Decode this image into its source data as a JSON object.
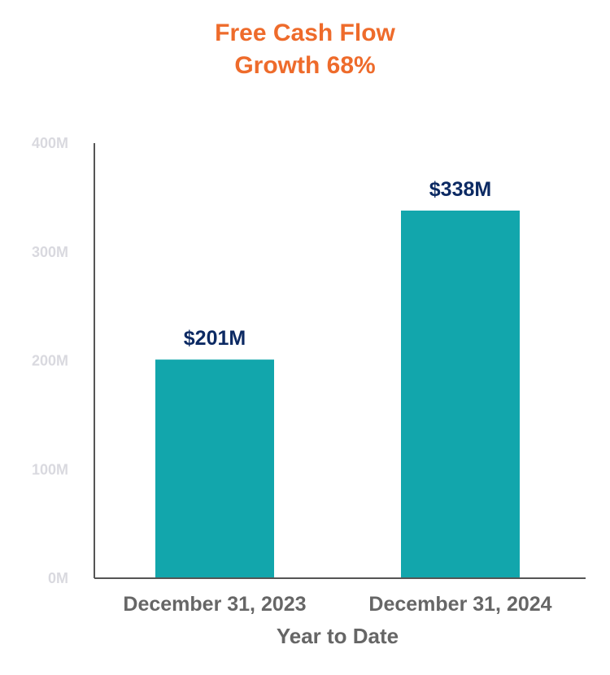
{
  "chart_data": {
    "type": "bar",
    "title": "Free Cash Flow",
    "subtitle": "Growth 68%",
    "xlabel": "Year to Date",
    "ylabel": "",
    "categories": [
      "December 31, 2023",
      "December 31, 2024"
    ],
    "values": [
      201,
      338
    ],
    "data_labels": [
      "$201M",
      "$338M"
    ],
    "ylim": [
      0,
      400
    ],
    "yticks": [
      0,
      100,
      200,
      300,
      400
    ],
    "ytick_labels": [
      "0M",
      "100M",
      "200M",
      "300M",
      "400M"
    ],
    "grid": false,
    "legend": "none"
  },
  "colors": {
    "title": "#ee6b2b",
    "bar": "#12a6ac",
    "data_label": "#0c2a63",
    "category_label": "#666666",
    "axis_title": "#666666",
    "tick_label": "#d9d9df",
    "axis_line": "#555555"
  }
}
